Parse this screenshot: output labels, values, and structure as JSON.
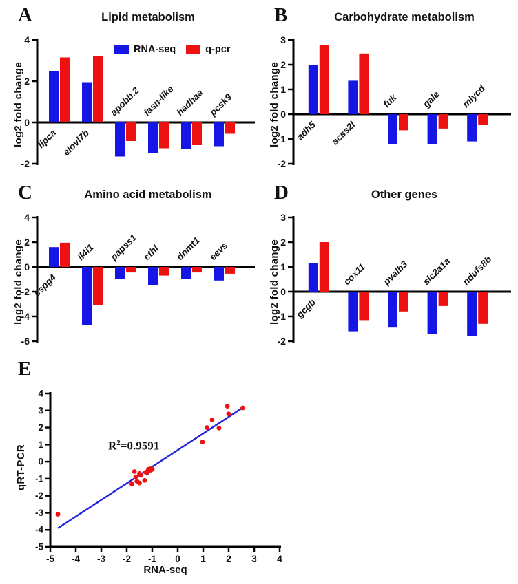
{
  "figure": {
    "background": "#ffffff",
    "colors": {
      "rna_seq_bar": "#1515e6",
      "qpcr_bar": "#ee1111",
      "axis": "#000000",
      "trend_line": "#2222dd",
      "scatter_point": "#ee1111"
    },
    "legend": {
      "items": [
        {
          "label": "RNA-seq",
          "color": "#1515e6"
        },
        {
          "label": "q-pcr",
          "color": "#ee1111"
        }
      ]
    }
  },
  "chart_data": [
    {
      "id": "A",
      "panel_letter": "A",
      "type": "bar",
      "title": "Lipid metabolism",
      "ylabel": "log2 fold change",
      "ylim": [
        -2,
        4
      ],
      "yticks": [
        4,
        2,
        0,
        -2
      ],
      "categories": [
        "lipca",
        "elovl7b",
        "apobb.2",
        "fasn-like",
        "hadhaa",
        "pcsk9"
      ],
      "series": [
        {
          "name": "RNA-seq",
          "color": "#1515e6",
          "values": [
            2.5,
            1.95,
            -1.65,
            -1.5,
            -1.3,
            -1.15
          ]
        },
        {
          "name": "q-pcr",
          "color": "#ee1111",
          "values": [
            3.15,
            3.2,
            -0.9,
            -1.25,
            -1.1,
            -0.55
          ]
        }
      ],
      "legend_position": "top-right-inside"
    },
    {
      "id": "B",
      "panel_letter": "B",
      "type": "bar",
      "title": "Carbohydrate metabolism",
      "ylabel": "log2 fold change",
      "ylim": [
        -2,
        3
      ],
      "yticks": [
        3,
        2,
        1,
        0,
        -1,
        -2
      ],
      "categories": [
        "adh5",
        "acss2l",
        "fuk",
        "gale",
        "mlycd"
      ],
      "series": [
        {
          "name": "RNA-seq",
          "color": "#1515e6",
          "values": [
            2.0,
            1.35,
            -1.2,
            -1.22,
            -1.1
          ]
        },
        {
          "name": "q-pcr",
          "color": "#ee1111",
          "values": [
            2.8,
            2.45,
            -0.65,
            -0.58,
            -0.42
          ]
        }
      ]
    },
    {
      "id": "C",
      "panel_letter": "C",
      "type": "bar",
      "title": "Amino acid metabolism",
      "ylabel": "log2 fold change",
      "ylim": [
        -6,
        4
      ],
      "yticks": [
        4,
        2,
        0,
        -2,
        -4,
        -6
      ],
      "categories": [
        "cspg4",
        "il4i1",
        "papss1",
        "cthl",
        "dnmt1",
        "eevs"
      ],
      "series": [
        {
          "name": "RNA-seq",
          "color": "#1515e6",
          "values": [
            1.6,
            -4.7,
            -1.0,
            -1.5,
            -1.0,
            -1.1
          ]
        },
        {
          "name": "q-pcr",
          "color": "#ee1111",
          "values": [
            1.95,
            -3.1,
            -0.45,
            -0.7,
            -0.45,
            -0.55
          ]
        }
      ]
    },
    {
      "id": "D",
      "panel_letter": "D",
      "type": "bar",
      "title": "Other genes",
      "ylabel": "log2 fold change",
      "ylim": [
        -2,
        3
      ],
      "yticks": [
        3,
        2,
        1,
        0,
        -1,
        -2
      ],
      "categories": [
        "gcgb",
        "cox11",
        "pvalb3",
        "slc2a1a",
        "ndufs8b"
      ],
      "series": [
        {
          "name": "RNA-seq",
          "color": "#1515e6",
          "values": [
            1.15,
            -1.6,
            -1.45,
            -1.7,
            -1.8
          ]
        },
        {
          "name": "q-pcr",
          "color": "#ee1111",
          "values": [
            2.0,
            -1.15,
            -0.8,
            -0.58,
            -1.3
          ]
        }
      ]
    },
    {
      "id": "E",
      "panel_letter": "E",
      "type": "scatter",
      "xlabel": "RNA-seq",
      "ylabel": "qRT-PCR",
      "xlim": [
        -5,
        4
      ],
      "ylim": [
        -5,
        4
      ],
      "xticks": [
        -5,
        -4,
        -3,
        -2,
        -1,
        0,
        1,
        2,
        3,
        4
      ],
      "yticks": [
        4,
        3,
        2,
        1,
        0,
        -1,
        -2,
        -3,
        -4,
        -5
      ],
      "annotation": {
        "prefix": "R",
        "sup": "2",
        "suffix": "=0.9591"
      },
      "trend_line": {
        "x1": -4.7,
        "y1": -3.9,
        "x2": 2.56,
        "y2": 3.17,
        "color": "#2222dd"
      },
      "point_color": "#ee1111",
      "points": [
        [
          -4.7,
          -3.08
        ],
        [
          -1.8,
          -1.3
        ],
        [
          -1.7,
          -0.58
        ],
        [
          -1.65,
          -0.9
        ],
        [
          -1.6,
          -1.15
        ],
        [
          -1.5,
          -1.25
        ],
        [
          -1.5,
          -0.7
        ],
        [
          -1.45,
          -0.8
        ],
        [
          -1.3,
          -1.1
        ],
        [
          -1.25,
          -0.62
        ],
        [
          -1.2,
          -0.65
        ],
        [
          -1.15,
          -0.55
        ],
        [
          -1.15,
          -0.45
        ],
        [
          -1.1,
          -0.42
        ],
        [
          -1.05,
          -0.5
        ],
        [
          -1.0,
          -0.45
        ],
        [
          0.97,
          1.15
        ],
        [
          1.15,
          2.0
        ],
        [
          1.35,
          2.45
        ],
        [
          1.62,
          1.97
        ],
        [
          1.95,
          3.25
        ],
        [
          2.0,
          2.8
        ],
        [
          2.55,
          3.15
        ]
      ]
    }
  ]
}
